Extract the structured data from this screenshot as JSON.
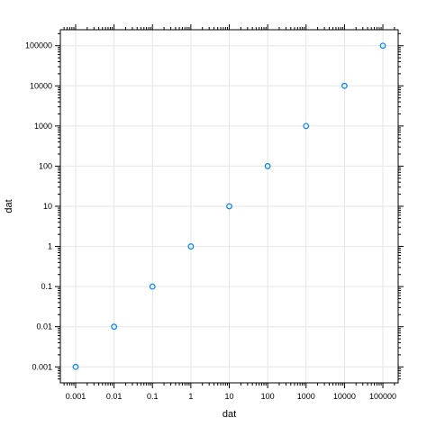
{
  "chart_data": {
    "type": "scatter",
    "title": "",
    "xlabel": "dat",
    "ylabel": "dat",
    "x_scale": "log10",
    "y_scale": "log10",
    "xlim": [
      0.0004,
      250000
    ],
    "ylim": [
      0.0004,
      250000
    ],
    "grid": true,
    "marker_color": "#0080ff",
    "x_tick_labels": [
      "0.001",
      "0.01",
      "0.1",
      "1",
      "10",
      "100",
      "1000",
      "10000",
      "100000"
    ],
    "y_tick_labels": [
      "0.001",
      "0.01",
      "0.1",
      "1",
      "10",
      "100",
      "1000",
      "10000",
      "100000"
    ],
    "x_ticks": [
      0.001,
      0.01,
      0.1,
      1,
      10,
      100,
      1000,
      10000,
      100000
    ],
    "y_ticks": [
      0.001,
      0.01,
      0.1,
      1,
      10,
      100,
      1000,
      10000,
      100000
    ],
    "series": [
      {
        "x": [
          0.001,
          0.01,
          0.1,
          1,
          10,
          100,
          1000,
          10000,
          100000
        ],
        "y": [
          0.001,
          0.01,
          0.1,
          1,
          10,
          100,
          1000,
          10000,
          100000
        ]
      }
    ]
  }
}
